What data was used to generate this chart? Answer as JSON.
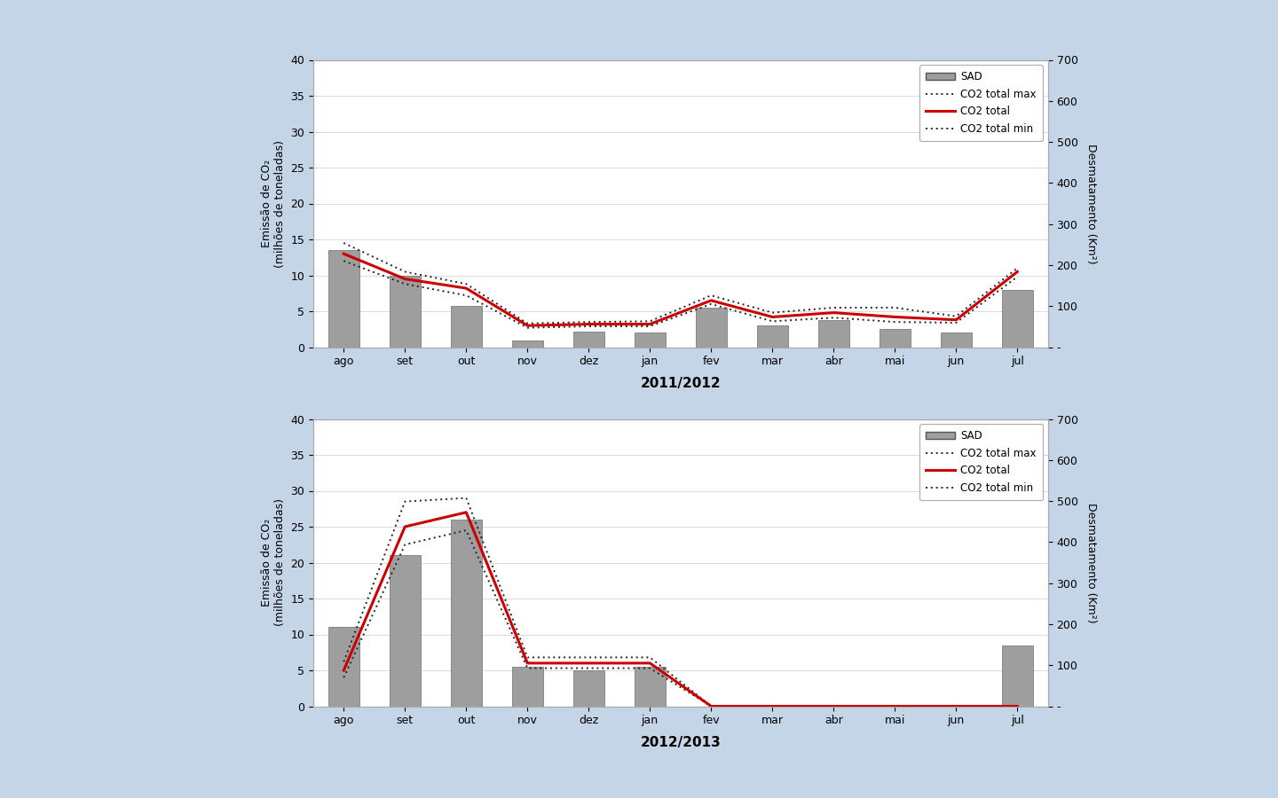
{
  "chart1": {
    "title": "2011/2012",
    "months": [
      "ago",
      "set",
      "out",
      "nov",
      "dez",
      "jan",
      "fev",
      "mar",
      "abr",
      "mai",
      "jun",
      "jul"
    ],
    "bars": [
      13.5,
      10.0,
      5.8,
      0.9,
      2.2,
      2.0,
      5.5,
      3.0,
      3.8,
      2.5,
      2.0,
      8.0
    ],
    "co2_total": [
      13.0,
      9.5,
      8.2,
      3.0,
      3.2,
      3.2,
      6.5,
      4.2,
      4.8,
      4.2,
      3.8,
      10.5
    ],
    "co2_max": [
      14.5,
      10.5,
      8.8,
      3.3,
      3.5,
      3.6,
      7.2,
      4.8,
      5.5,
      5.5,
      4.3,
      11.0
    ],
    "co2_min": [
      12.0,
      8.8,
      7.2,
      2.7,
      2.9,
      2.9,
      6.0,
      3.6,
      4.1,
      3.5,
      3.4,
      9.8
    ]
  },
  "chart2": {
    "title": "2012/2013",
    "months": [
      "ago",
      "set",
      "out",
      "nov",
      "dez",
      "jan",
      "fev",
      "mar",
      "abr",
      "mai",
      "jun",
      "jul"
    ],
    "bars": [
      11.0,
      21.0,
      26.0,
      5.5,
      5.0,
      5.5,
      0.0,
      0.0,
      0.0,
      0.0,
      0.0,
      8.5
    ],
    "co2_total": [
      5.0,
      25.0,
      27.0,
      6.0,
      6.0,
      6.0,
      0.0,
      0.0,
      0.0,
      0.0,
      0.0,
      0.0
    ],
    "co2_max": [
      6.2,
      28.5,
      29.0,
      6.8,
      6.8,
      6.8,
      0.0,
      0.0,
      0.0,
      0.0,
      0.0,
      0.0
    ],
    "co2_min": [
      4.0,
      22.5,
      24.5,
      5.3,
      5.3,
      5.3,
      0.0,
      0.0,
      0.0,
      0.0,
      0.0,
      0.0
    ]
  },
  "ylim": [
    0,
    40
  ],
  "yticks_left": [
    0,
    5,
    10,
    15,
    20,
    25,
    30,
    35,
    40
  ],
  "right_tick_positions": [
    0.0,
    5.714,
    11.429,
    17.143,
    22.857,
    28.571,
    34.286,
    40.0
  ],
  "right_tick_labels": [
    "-",
    "100",
    "200",
    "300",
    "400",
    "500",
    "600",
    "700"
  ],
  "bar_color": "#9e9e9e",
  "co2_total_color": "#cc0000",
  "co2_band_color": "#222222",
  "bg_word": "#c5d5e8",
  "bg_page": "#ffffff",
  "bg_chart": "#ffffff",
  "ylabel_left": "Emissão de CO₂\n(milhões de toneladas)",
  "ylabel_right": "Desmatamento (Km²)",
  "legend_labels": [
    "SAD",
    "CO2 total max",
    "CO2 total",
    "CO2 total min"
  ],
  "title_fontsize": 11,
  "tick_fontsize": 9,
  "ylabel_fontsize": 9
}
